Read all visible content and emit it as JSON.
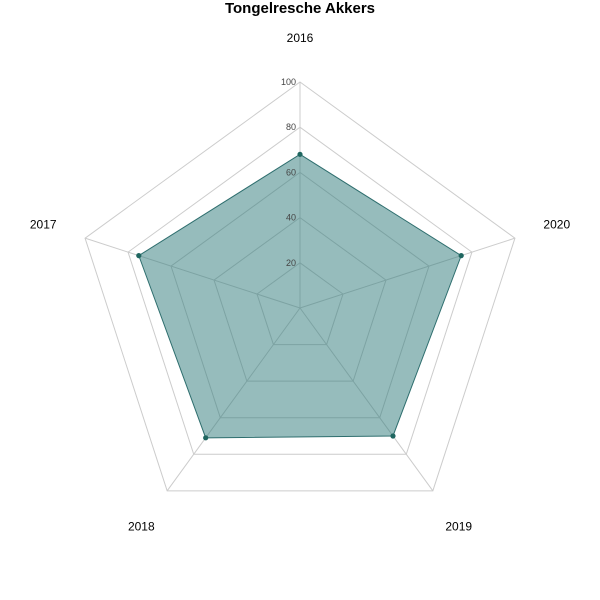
{
  "chart_data": {
    "type": "radar",
    "title": "Tongelresche Akkers",
    "categories": [
      "2016",
      "2020",
      "2019",
      "2018",
      "2017"
    ],
    "series": [
      {
        "values": [
          68,
          75,
          70,
          71,
          75
        ]
      }
    ],
    "rlim": [
      0,
      100
    ],
    "rticks": [
      20,
      40,
      60,
      80,
      100
    ],
    "grid": true,
    "fill_color": "#2e7a7a",
    "fill_opacity": 0.5,
    "line_color": "#2e6e6e",
    "marker_color": "#1f6660"
  }
}
